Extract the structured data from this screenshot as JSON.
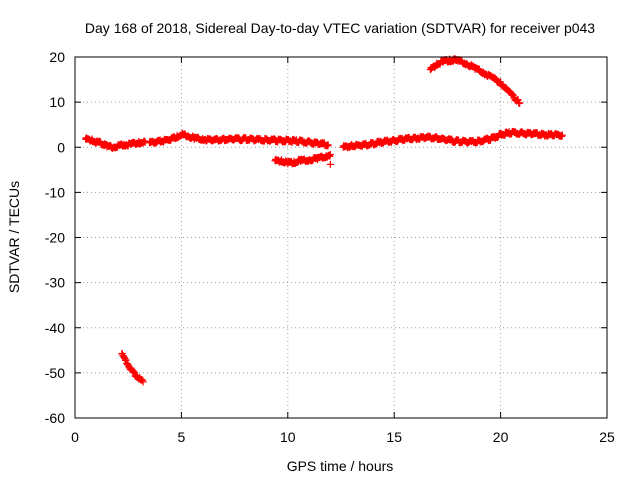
{
  "chart_data": {
    "type": "scatter",
    "title": "Day 168 of 2018, Sidereal Day-to-day VTEC variation (SDTVAR) for receiver p043",
    "xlabel": "GPS time / hours",
    "ylabel": "SDTVAR / TECUs",
    "xlim": [
      0,
      25
    ],
    "ylim": [
      -60,
      20
    ],
    "xticks": [
      0,
      5,
      10,
      15,
      20,
      25
    ],
    "yticks": [
      -60,
      -50,
      -40,
      -30,
      -20,
      -10,
      0,
      10,
      20
    ],
    "grid": true,
    "marker": "+",
    "series_color": "#ff0000",
    "series": [
      {
        "name": "p043",
        "segments": [
          {
            "x": [
              0.5,
              0.8,
              1.0,
              1.2,
              1.5,
              1.8,
              2.0,
              2.3,
              2.6,
              3.0,
              3.3
            ],
            "y": [
              1.8,
              1.5,
              1.2,
              1.0,
              0.2,
              0.0,
              0.3,
              0.5,
              0.7,
              1.0,
              1.1
            ]
          },
          {
            "x": [
              3.5,
              4.0,
              4.5,
              4.8,
              5.0,
              5.3,
              5.6,
              6.0,
              6.5,
              7.0,
              7.5,
              8.0,
              8.5,
              9.0,
              9.5,
              10.0,
              10.5,
              11.0,
              11.5,
              11.9
            ],
            "y": [
              1.0,
              1.3,
              1.8,
              2.4,
              2.8,
              2.5,
              2.0,
              1.8,
              1.6,
              1.7,
              1.8,
              1.8,
              1.7,
              1.6,
              1.5,
              1.5,
              1.3,
              1.1,
              0.8,
              0.5
            ]
          },
          {
            "x": [
              9.4,
              9.7,
              10.0,
              10.3,
              10.6,
              11.0,
              11.4,
              11.8,
              12.0
            ],
            "y": [
              -3.0,
              -3.1,
              -3.4,
              -3.3,
              -3.0,
              -2.8,
              -2.5,
              -2.0,
              -1.6
            ]
          },
          {
            "x": [
              12.0
            ],
            "y": [
              -3.8
            ]
          },
          {
            "x": [
              12.6,
              13.0,
              13.5,
              14.0,
              14.5,
              15.0,
              15.5,
              16.0,
              16.5,
              17.0,
              17.5,
              18.0,
              18.5,
              19.0,
              19.5,
              20.0,
              20.5,
              21.0,
              21.5,
              22.0,
              22.5,
              22.9
            ],
            "y": [
              0.0,
              0.3,
              0.5,
              0.8,
              1.2,
              1.5,
              1.8,
              2.0,
              2.2,
              2.0,
              1.6,
              1.3,
              1.2,
              1.3,
              1.8,
              2.8,
              3.2,
              3.1,
              3.0,
              2.8,
              2.7,
              2.7
            ]
          },
          {
            "x": [
              16.7,
              17.0,
              17.3,
              17.6,
              18.0,
              18.4,
              18.8,
              19.2,
              19.6,
              20.0,
              20.4,
              20.8,
              20.9
            ],
            "y": [
              17.2,
              18.3,
              19.1,
              19.3,
              19.2,
              18.5,
              17.5,
              16.5,
              15.5,
              14.2,
              12.2,
              10.3,
              9.8
            ]
          },
          {
            "x": [
              2.2,
              2.4,
              2.6,
              2.8,
              3.0,
              3.2
            ],
            "y": [
              -45.8,
              -47.5,
              -49.0,
              -50.2,
              -51.2,
              -52.0
            ]
          }
        ]
      }
    ]
  }
}
